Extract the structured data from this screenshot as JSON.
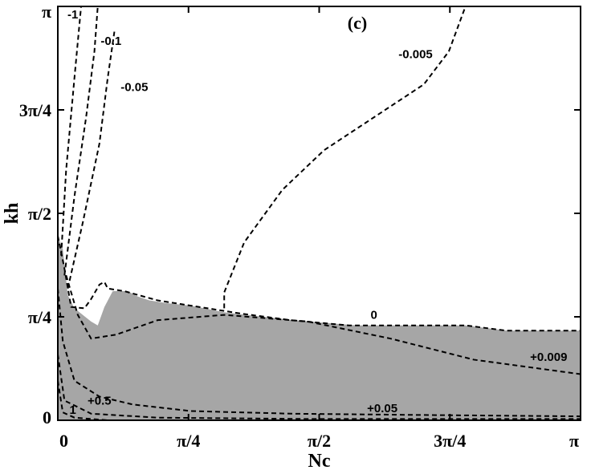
{
  "chart_data": {
    "type": "contour",
    "panel_label": "(c)",
    "xlabel": "Nc",
    "ylabel": "kh",
    "xlim": [
      0,
      3.14159
    ],
    "ylim": [
      0,
      3.14159
    ],
    "x_ticks": [
      {
        "value": 0,
        "label": "0"
      },
      {
        "value": 0.7854,
        "label": "π/4"
      },
      {
        "value": 1.5708,
        "label": "π/2"
      },
      {
        "value": 2.3562,
        "label": "3π/4"
      },
      {
        "value": 3.14159,
        "label": "π"
      }
    ],
    "y_ticks": [
      {
        "value": 0,
        "label": "0"
      },
      {
        "value": 0.7854,
        "label": "π/4"
      },
      {
        "value": 1.5708,
        "label": "π/2"
      },
      {
        "value": 2.3562,
        "label": "3π/4"
      },
      {
        "value": 3.14159,
        "label": "π"
      }
    ],
    "grid": false,
    "colors": {
      "unstable_region": "#a6a6a6",
      "contour": "#000000"
    },
    "shaded_region": [
      [
        0,
        0
      ],
      [
        0,
        1.4
      ],
      [
        0.03,
        1.3
      ],
      [
        0.06,
        0.95
      ],
      [
        0.1,
        0.85
      ],
      [
        0.15,
        0.8
      ],
      [
        0.2,
        0.75
      ],
      [
        0.24,
        0.72
      ],
      [
        0.28,
        0.86
      ],
      [
        0.33,
        0.98
      ],
      [
        0.42,
        0.98
      ],
      [
        0.48,
        0.94
      ],
      [
        0.55,
        0.91
      ],
      [
        0.65,
        0.89
      ],
      [
        0.8,
        0.87
      ],
      [
        1.0,
        0.82
      ],
      [
        1.4,
        0.76
      ],
      [
        1.8,
        0.72
      ],
      [
        2.2,
        0.72
      ],
      [
        2.45,
        0.72
      ],
      [
        2.7,
        0.68
      ],
      [
        3.14159,
        0.68
      ],
      [
        3.14159,
        0
      ]
    ],
    "contours": [
      {
        "label": "-1",
        "points": [
          [
            0.02,
            1.25
          ],
          [
            0.05,
            1.9
          ],
          [
            0.1,
            2.6
          ],
          [
            0.14,
            3.14159
          ]
        ]
      },
      {
        "label": "-0.1",
        "points": [
          [
            0.04,
            1.1
          ],
          [
            0.1,
            1.7
          ],
          [
            0.17,
            2.3
          ],
          [
            0.22,
            2.8
          ],
          [
            0.24,
            3.14159
          ]
        ]
      },
      {
        "label": "-0.05",
        "points": [
          [
            0.06,
            1.0
          ],
          [
            0.15,
            1.5
          ],
          [
            0.25,
            2.1
          ],
          [
            0.3,
            2.6
          ],
          [
            0.34,
            2.95
          ]
        ]
      },
      {
        "label": "-0.005",
        "points": [
          [
            1.0,
            0.85
          ],
          [
            1.0,
            0.97
          ],
          [
            1.12,
            1.35
          ],
          [
            1.35,
            1.75
          ],
          [
            1.6,
            2.05
          ],
          [
            1.9,
            2.3
          ],
          [
            2.2,
            2.55
          ],
          [
            2.35,
            2.8
          ],
          [
            2.45,
            3.14159
          ]
        ]
      },
      {
        "label": "0",
        "points": [
          [
            0.0,
            1.4
          ],
          [
            0.04,
            1.15
          ],
          [
            0.08,
            0.86
          ],
          [
            0.16,
            0.85
          ],
          [
            0.2,
            0.92
          ],
          [
            0.25,
            1.03
          ],
          [
            0.28,
            1.05
          ],
          [
            0.3,
            1.0
          ],
          [
            0.4,
            0.98
          ],
          [
            0.6,
            0.91
          ],
          [
            0.8,
            0.87
          ],
          [
            1.1,
            0.81
          ],
          [
            1.4,
            0.76
          ],
          [
            1.75,
            0.72
          ],
          [
            2.45,
            0.72
          ],
          [
            2.7,
            0.68
          ],
          [
            3.14159,
            0.68
          ]
        ]
      },
      {
        "label": "+0.009",
        "points": [
          [
            0.05,
            1.1
          ],
          [
            0.12,
            0.8
          ],
          [
            0.2,
            0.62
          ],
          [
            0.35,
            0.65
          ],
          [
            0.6,
            0.76
          ],
          [
            1.0,
            0.8
          ],
          [
            1.5,
            0.75
          ],
          [
            2.0,
            0.62
          ],
          [
            2.5,
            0.46
          ],
          [
            3.14159,
            0.35
          ]
        ]
      },
      {
        "label": "+0.5",
        "points": [
          [
            0.0,
            1.0
          ],
          [
            0.03,
            0.6
          ],
          [
            0.1,
            0.3
          ],
          [
            0.25,
            0.18
          ],
          [
            0.45,
            0.12
          ],
          [
            0.8,
            0.07
          ],
          [
            1.4,
            0.05
          ],
          [
            2.2,
            0.04
          ],
          [
            3.14159,
            0.03
          ]
        ]
      },
      {
        "label": "+0.05",
        "points": [
          [
            0.0,
            0.5
          ],
          [
            0.04,
            0.15
          ],
          [
            0.2,
            0.05
          ],
          [
            0.6,
            0.02
          ],
          [
            1.5,
            0.01
          ],
          [
            3.14159,
            0.01
          ]
        ]
      },
      {
        "label": "1",
        "points": [
          [
            0.0,
            0.3
          ],
          [
            0.03,
            0.06
          ],
          [
            0.1,
            0.02
          ],
          [
            0.3,
            0.0
          ]
        ]
      }
    ],
    "contour_labels": [
      {
        "text": "-1",
        "x": 0.09,
        "y": 3.05
      },
      {
        "text": "-0.1",
        "x": 0.32,
        "y": 2.85
      },
      {
        "text": "-0.05",
        "x": 0.46,
        "y": 2.5
      },
      {
        "text": "-0.005",
        "x": 2.15,
        "y": 2.75
      },
      {
        "text": "0",
        "x": 1.9,
        "y": 0.77
      },
      {
        "text": "+0.009",
        "x": 2.95,
        "y": 0.45
      },
      {
        "text": "+0.5",
        "x": 0.25,
        "y": 0.12
      },
      {
        "text": "1",
        "x": 0.09,
        "y": 0.05
      },
      {
        "text": "+0.05",
        "x": 1.95,
        "y": 0.06
      }
    ]
  }
}
